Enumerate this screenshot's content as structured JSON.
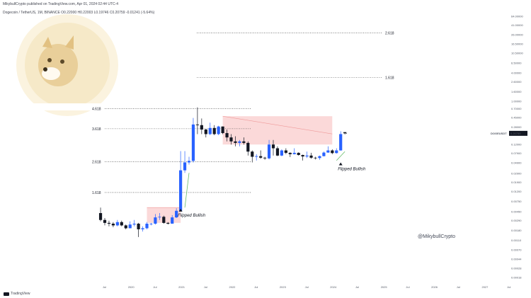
{
  "header": {
    "publisher": "MikybullCrypto published on TradingView.com, Apr 01, 2024 02:44 UTC-4",
    "symbol_line": "Dogecoin / TetherUS, 1M, BINANCE O0.22000 H0.22003 L0.19746 C0.20759 -0.01241 (-5.64%)"
  },
  "footer": {
    "brand": "TradingView",
    "logo_icon": "tradingview-logo-icon"
  },
  "watermark": {
    "handle": "@MikybullCrypto",
    "image_icon": "doge-coin-icon"
  },
  "colors": {
    "bull": "#2962ff",
    "bear": "#131722",
    "band": "#fbd5d5",
    "band_line": "#ef9a9a",
    "support": "#66bb6a",
    "price_tag": "#131722"
  },
  "chart_data": {
    "type": "candlestick",
    "title": "",
    "scale": "log",
    "y_ticks": [
      "64.00000",
      "41.00000",
      "26.00000",
      "16.50000",
      "10.50000",
      "6.50000",
      "4.00000",
      "2.60000",
      "1.60000",
      "1.00000",
      "0.70000",
      "0.45000",
      "0.28000",
      "0.20759",
      "0.12000",
      "0.07900",
      "0.04900",
      "0.02900",
      "0.01900",
      "0.01200",
      "0.00750",
      "0.00450",
      "0.00290",
      "0.00180",
      "0.00110",
      "0.00070",
      "0.00044",
      "0.00028",
      "0.00018"
    ],
    "x_ticks": [
      "Jul",
      "2020",
      "Jul",
      "2021",
      "Jul",
      "2022",
      "Jul",
      "2023",
      "Jul",
      "2024",
      "Jul",
      "2025",
      "Jul",
      "2026",
      "Jul",
      "2027",
      "Jul"
    ],
    "last_price": {
      "symbol": "DOGEUSDT",
      "value": "0.20759"
    },
    "fib_levels": [
      {
        "label": "4.618",
        "value": 0.7
      },
      {
        "label": "3.618",
        "value": 0.26
      },
      {
        "label": "2.618",
        "value": 0.052
      },
      {
        "label": "1.618",
        "value": 0.0115
      },
      {
        "label": "1.618",
        "value": 3.2
      },
      {
        "label": "2.618",
        "value": 28.0
      }
    ],
    "annotations": [
      {
        "text": "Flipped Bullish",
        "date": "2021-01",
        "price": 0.0052
      },
      {
        "text": "Flipped Bullish",
        "date": "2024-03",
        "price": 0.05
      }
    ],
    "resistance_bands": [
      {
        "from": "2020-05",
        "to": "2021-01",
        "low": 0.0026,
        "high": 0.0055
      },
      {
        "from": "2021-11",
        "to": "2024-01",
        "low": 0.12,
        "high": 0.48
      }
    ],
    "candles": [
      {
        "date": "2019-06",
        "o": 0.0042,
        "h": 0.0055,
        "l": 0.0028,
        "c": 0.003
      },
      {
        "date": "2019-07",
        "o": 0.003,
        "h": 0.0033,
        "l": 0.0023,
        "c": 0.0026
      },
      {
        "date": "2019-08",
        "o": 0.0026,
        "h": 0.0029,
        "l": 0.0022,
        "c": 0.0025
      },
      {
        "date": "2019-09",
        "o": 0.0025,
        "h": 0.0027,
        "l": 0.0021,
        "c": 0.0023
      },
      {
        "date": "2019-10",
        "o": 0.0023,
        "h": 0.003,
        "l": 0.0022,
        "c": 0.0027
      },
      {
        "date": "2019-11",
        "o": 0.0027,
        "h": 0.0029,
        "l": 0.0022,
        "c": 0.0023
      },
      {
        "date": "2019-12",
        "o": 0.0023,
        "h": 0.0024,
        "l": 0.0019,
        "c": 0.002
      },
      {
        "date": "2020-01",
        "o": 0.002,
        "h": 0.0028,
        "l": 0.002,
        "c": 0.0024
      },
      {
        "date": "2020-02",
        "o": 0.0024,
        "h": 0.003,
        "l": 0.0022,
        "c": 0.0025
      },
      {
        "date": "2020-03",
        "o": 0.0025,
        "h": 0.0026,
        "l": 0.0013,
        "c": 0.0019
      },
      {
        "date": "2020-04",
        "o": 0.0019,
        "h": 0.0022,
        "l": 0.0017,
        "c": 0.002
      },
      {
        "date": "2020-05",
        "o": 0.002,
        "h": 0.0027,
        "l": 0.0019,
        "c": 0.0025
      },
      {
        "date": "2020-06",
        "o": 0.0025,
        "h": 0.0026,
        "l": 0.0023,
        "c": 0.0025
      },
      {
        "date": "2020-07",
        "o": 0.0025,
        "h": 0.004,
        "l": 0.0024,
        "c": 0.0034
      },
      {
        "date": "2020-08",
        "o": 0.0034,
        "h": 0.0042,
        "l": 0.003,
        "c": 0.0035
      },
      {
        "date": "2020-09",
        "o": 0.0035,
        "h": 0.0037,
        "l": 0.0025,
        "c": 0.0026
      },
      {
        "date": "2020-10",
        "o": 0.0026,
        "h": 0.0027,
        "l": 0.0024,
        "c": 0.0025
      },
      {
        "date": "2020-11",
        "o": 0.0025,
        "h": 0.0038,
        "l": 0.0025,
        "c": 0.0034
      },
      {
        "date": "2020-12",
        "o": 0.0034,
        "h": 0.0053,
        "l": 0.0033,
        "c": 0.0047
      },
      {
        "date": "2021-01",
        "o": 0.0047,
        "h": 0.087,
        "l": 0.0047,
        "c": 0.034
      },
      {
        "date": "2021-02",
        "o": 0.034,
        "h": 0.087,
        "l": 0.03,
        "c": 0.05
      },
      {
        "date": "2021-03",
        "o": 0.05,
        "h": 0.066,
        "l": 0.045,
        "c": 0.054
      },
      {
        "date": "2021-04",
        "o": 0.054,
        "h": 0.44,
        "l": 0.05,
        "c": 0.32
      },
      {
        "date": "2021-05",
        "o": 0.32,
        "h": 0.74,
        "l": 0.2,
        "c": 0.31
      },
      {
        "date": "2021-06",
        "o": 0.31,
        "h": 0.43,
        "l": 0.2,
        "c": 0.25
      },
      {
        "date": "2021-07",
        "o": 0.25,
        "h": 0.26,
        "l": 0.17,
        "c": 0.2
      },
      {
        "date": "2021-08",
        "o": 0.2,
        "h": 0.35,
        "l": 0.19,
        "c": 0.27
      },
      {
        "date": "2021-09",
        "o": 0.27,
        "h": 0.31,
        "l": 0.19,
        "c": 0.2
      },
      {
        "date": "2021-10",
        "o": 0.2,
        "h": 0.3,
        "l": 0.19,
        "c": 0.29
      },
      {
        "date": "2021-11",
        "o": 0.29,
        "h": 0.29,
        "l": 0.2,
        "c": 0.21
      },
      {
        "date": "2021-12",
        "o": 0.21,
        "h": 0.25,
        "l": 0.14,
        "c": 0.17
      },
      {
        "date": "2022-01",
        "o": 0.17,
        "h": 0.2,
        "l": 0.12,
        "c": 0.14
      },
      {
        "date": "2022-02",
        "o": 0.14,
        "h": 0.18,
        "l": 0.11,
        "c": 0.13
      },
      {
        "date": "2022-03",
        "o": 0.13,
        "h": 0.15,
        "l": 0.11,
        "c": 0.14
      },
      {
        "date": "2022-04",
        "o": 0.14,
        "h": 0.17,
        "l": 0.12,
        "c": 0.13
      },
      {
        "date": "2022-05",
        "o": 0.13,
        "h": 0.14,
        "l": 0.07,
        "c": 0.085
      },
      {
        "date": "2022-06",
        "o": 0.085,
        "h": 0.09,
        "l": 0.05,
        "c": 0.066
      },
      {
        "date": "2022-07",
        "o": 0.066,
        "h": 0.075,
        "l": 0.055,
        "c": 0.068
      },
      {
        "date": "2022-08",
        "o": 0.068,
        "h": 0.09,
        "l": 0.06,
        "c": 0.063
      },
      {
        "date": "2022-09",
        "o": 0.063,
        "h": 0.066,
        "l": 0.057,
        "c": 0.061
      },
      {
        "date": "2022-10",
        "o": 0.061,
        "h": 0.15,
        "l": 0.058,
        "c": 0.12
      },
      {
        "date": "2022-11",
        "o": 0.12,
        "h": 0.15,
        "l": 0.07,
        "c": 0.1
      },
      {
        "date": "2022-12",
        "o": 0.1,
        "h": 0.11,
        "l": 0.068,
        "c": 0.07
      },
      {
        "date": "2023-01",
        "o": 0.07,
        "h": 0.095,
        "l": 0.068,
        "c": 0.09
      },
      {
        "date": "2023-02",
        "o": 0.09,
        "h": 0.1,
        "l": 0.075,
        "c": 0.08
      },
      {
        "date": "2023-03",
        "o": 0.08,
        "h": 0.082,
        "l": 0.065,
        "c": 0.075
      },
      {
        "date": "2023-04",
        "o": 0.075,
        "h": 0.1,
        "l": 0.074,
        "c": 0.08
      },
      {
        "date": "2023-05",
        "o": 0.08,
        "h": 0.082,
        "l": 0.07,
        "c": 0.072
      },
      {
        "date": "2023-06",
        "o": 0.072,
        "h": 0.073,
        "l": 0.055,
        "c": 0.067
      },
      {
        "date": "2023-07",
        "o": 0.067,
        "h": 0.085,
        "l": 0.062,
        "c": 0.07
      },
      {
        "date": "2023-08",
        "o": 0.07,
        "h": 0.08,
        "l": 0.06,
        "c": 0.063
      },
      {
        "date": "2023-09",
        "o": 0.063,
        "h": 0.066,
        "l": 0.058,
        "c": 0.062
      },
      {
        "date": "2023-10",
        "o": 0.062,
        "h": 0.07,
        "l": 0.057,
        "c": 0.068
      },
      {
        "date": "2023-11",
        "o": 0.068,
        "h": 0.085,
        "l": 0.067,
        "c": 0.081
      },
      {
        "date": "2023-12",
        "o": 0.081,
        "h": 0.11,
        "l": 0.08,
        "c": 0.09
      },
      {
        "date": "2024-01",
        "o": 0.09,
        "h": 0.095,
        "l": 0.075,
        "c": 0.079
      },
      {
        "date": "2024-02",
        "o": 0.079,
        "h": 0.1,
        "l": 0.077,
        "c": 0.09
      },
      {
        "date": "2024-03",
        "o": 0.09,
        "h": 0.23,
        "l": 0.089,
        "c": 0.2
      },
      {
        "date": "2024-04",
        "o": 0.22,
        "h": 0.22003,
        "l": 0.19746,
        "c": 0.20759
      }
    ],
    "support_lines": [
      {
        "points": [
          {
            "date": "2021-02",
            "price": 0.0055
          },
          {
            "date": "2021-03",
            "price": 0.03
          }
        ]
      },
      {
        "points": [
          {
            "date": "2024-02",
            "price": 0.055
          },
          {
            "date": "2024-04",
            "price": 0.085
          }
        ]
      }
    ]
  }
}
